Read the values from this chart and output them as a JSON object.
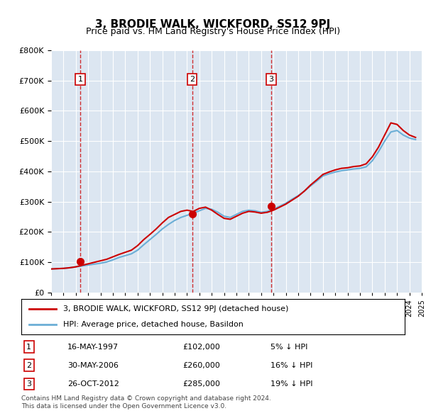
{
  "title": "3, BRODIE WALK, WICKFORD, SS12 9PJ",
  "subtitle": "Price paid vs. HM Land Registry's House Price Index (HPI)",
  "ylabel": "",
  "background_color": "#dce6f1",
  "plot_bg_color": "#dce6f1",
  "legend_entry1": "3, BRODIE WALK, WICKFORD, SS12 9PJ (detached house)",
  "legend_entry2": "HPI: Average price, detached house, Basildon",
  "transactions": [
    {
      "num": 1,
      "date": "16-MAY-1997",
      "year": 1997.37,
      "price": 102000,
      "pct": "5%",
      "dir": "↓"
    },
    {
      "num": 2,
      "date": "30-MAY-2006",
      "year": 2006.41,
      "price": 260000,
      "pct": "16%",
      "dir": "↓"
    },
    {
      "num": 3,
      "date": "26-OCT-2012",
      "year": 2012.82,
      "price": 285000,
      "pct": "19%",
      "dir": "↓"
    }
  ],
  "footnote1": "Contains HM Land Registry data © Crown copyright and database right 2024.",
  "footnote2": "This data is licensed under the Open Government Licence v3.0.",
  "hpi_years": [
    1995,
    1995.5,
    1996,
    1996.5,
    1997,
    1997.5,
    1998,
    1998.5,
    1999,
    1999.5,
    2000,
    2000.5,
    2001,
    2001.5,
    2002,
    2002.5,
    2003,
    2003.5,
    2004,
    2004.5,
    2005,
    2005.5,
    2006,
    2006.5,
    2007,
    2007.5,
    2008,
    2008.5,
    2009,
    2009.5,
    2010,
    2010.5,
    2011,
    2011.5,
    2012,
    2012.5,
    2013,
    2013.5,
    2014,
    2014.5,
    2015,
    2015.5,
    2016,
    2016.5,
    2017,
    2017.5,
    2018,
    2018.5,
    2019,
    2019.5,
    2020,
    2020.5,
    2021,
    2021.5,
    2022,
    2022.5,
    2023,
    2023.5,
    2024,
    2024.5
  ],
  "hpi_values": [
    78000,
    79000,
    80000,
    82000,
    85000,
    88000,
    91000,
    94000,
    97000,
    101000,
    108000,
    116000,
    122000,
    128000,
    140000,
    158000,
    175000,
    192000,
    210000,
    225000,
    238000,
    248000,
    255000,
    262000,
    270000,
    278000,
    275000,
    265000,
    252000,
    248000,
    258000,
    268000,
    272000,
    270000,
    265000,
    268000,
    275000,
    285000,
    295000,
    308000,
    320000,
    335000,
    352000,
    368000,
    385000,
    392000,
    398000,
    402000,
    405000,
    408000,
    410000,
    415000,
    435000,
    465000,
    500000,
    530000,
    535000,
    520000,
    510000,
    505000
  ],
  "price_years": [
    1995,
    1995.5,
    1996,
    1996.5,
    1997,
    1997.5,
    1998,
    1998.5,
    1999,
    1999.5,
    2000,
    2000.5,
    2001,
    2001.5,
    2002,
    2002.5,
    2003,
    2003.5,
    2004,
    2004.5,
    2005,
    2005.5,
    2006,
    2006.5,
    2007,
    2007.5,
    2008,
    2008.5,
    2009,
    2009.5,
    2010,
    2010.5,
    2011,
    2011.5,
    2012,
    2012.5,
    2013,
    2013.5,
    2014,
    2014.5,
    2015,
    2015.5,
    2016,
    2016.5,
    2017,
    2017.5,
    2018,
    2018.5,
    2019,
    2019.5,
    2020,
    2020.5,
    2021,
    2021.5,
    2022,
    2022.5,
    2023,
    2023.5,
    2024,
    2024.5
  ],
  "price_values": [
    78000,
    79000,
    80000,
    82000,
    85000,
    90000,
    95000,
    100000,
    105000,
    110000,
    118000,
    126000,
    133000,
    140000,
    155000,
    175000,
    192000,
    210000,
    230000,
    248000,
    258000,
    268000,
    272000,
    268000,
    278000,
    282000,
    272000,
    258000,
    245000,
    242000,
    252000,
    262000,
    268000,
    266000,
    262000,
    265000,
    272000,
    282000,
    292000,
    305000,
    318000,
    335000,
    355000,
    372000,
    390000,
    398000,
    405000,
    410000,
    412000,
    416000,
    418000,
    425000,
    448000,
    480000,
    520000,
    560000,
    555000,
    535000,
    520000,
    512000
  ],
  "ylim": [
    0,
    800000
  ],
  "xlim": [
    1995,
    2025
  ],
  "yticks": [
    0,
    100000,
    200000,
    300000,
    400000,
    500000,
    600000,
    700000,
    800000
  ],
  "xtick_years": [
    1995,
    1996,
    1997,
    1998,
    1999,
    2000,
    2001,
    2002,
    2003,
    2004,
    2005,
    2006,
    2007,
    2008,
    2009,
    2010,
    2011,
    2012,
    2013,
    2014,
    2015,
    2016,
    2017,
    2018,
    2019,
    2020,
    2021,
    2022,
    2023,
    2024,
    2025
  ]
}
